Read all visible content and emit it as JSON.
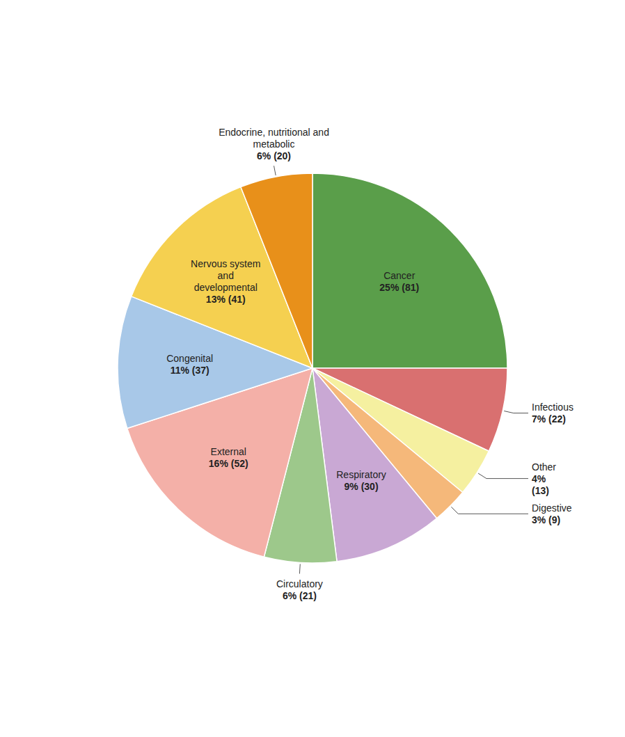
{
  "chart_data": {
    "type": "pie",
    "categories": [
      "Cancer",
      "Infectious",
      "Other",
      "Digestive",
      "Respiratory",
      "Circulatory",
      "External",
      "Congenital",
      "Nervous system\nand\ndevelopmental",
      "Endocrine, nutritional and\nmetabolic"
    ],
    "values": [
      25,
      7,
      4,
      3,
      9,
      6,
      16,
      11,
      13,
      6
    ],
    "value_labels": [
      "25% (81)",
      "7% (22)",
      "4%\n(13)",
      "3% (9)",
      "9% (30)",
      "6% (21)",
      "16% (52)",
      "11% (37)",
      "13% (41)",
      "6% (20)"
    ],
    "colors": [
      "#5a9e4a",
      "#d97070",
      "#f5f0a0",
      "#f5b87a",
      "#c9a8d4",
      "#9dc88b",
      "#f4b0a8",
      "#a8c8e8",
      "#f5d050",
      "#e8901a"
    ],
    "data_labels": true
  }
}
